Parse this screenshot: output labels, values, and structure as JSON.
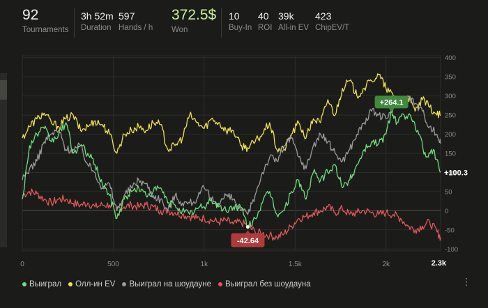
{
  "stats": {
    "tournaments": {
      "value": "92",
      "label": "Tournaments"
    },
    "duration": {
      "value": "3h 52m",
      "label": "Duration"
    },
    "hands": {
      "value": "597",
      "label": "Hands / h"
    },
    "won": {
      "value": "372.5$",
      "label": "Won"
    },
    "buyin": {
      "value": "10",
      "label": "Buy-In"
    },
    "roi": {
      "value": "40",
      "label": "ROI"
    },
    "allin_ev": {
      "value": "39k",
      "label": "All-in EV"
    },
    "chip_ev": {
      "value": "423",
      "label": "ChipEV/T"
    }
  },
  "colors": {
    "won": "#6fe07a",
    "allin_ev": "#f2e24c",
    "showdown": "#9b9b9b",
    "no_showdown": "#e35757",
    "tooltip_max": "#3f8a3c",
    "tooltip_min": "#b13b3b"
  },
  "legend": [
    {
      "key": "won",
      "label": "Выиграл"
    },
    {
      "key": "allin_ev",
      "label": "Олл-ин EV"
    },
    {
      "key": "showdown",
      "label": "Выиграл на шоудауне"
    },
    {
      "key": "no_showdown",
      "label": "Выиграл без шоудауна"
    }
  ],
  "chart_data": {
    "type": "line",
    "x_ticks": [
      0,
      500,
      1000,
      1500,
      2000
    ],
    "x_tick_labels": [
      "0",
      "500",
      "1k",
      "1.5k",
      "2k"
    ],
    "x_end_label": "2.3k",
    "xlim": [
      0,
      2300
    ],
    "y_ticks": [
      -100,
      -50,
      0,
      50,
      100,
      150,
      200,
      250,
      300,
      350,
      400
    ],
    "ylim": [
      -105,
      405
    ],
    "annotations": {
      "max": {
        "label": "+264.1",
        "x": 2030,
        "y": 264.1
      },
      "min": {
        "label": "-42.64",
        "x": 1240,
        "y": -42.64
      },
      "last": {
        "label": "+100.3",
        "x": 2300,
        "y": 100.3
      }
    },
    "series": [
      {
        "key": "won",
        "x": [
          0,
          40,
          80,
          120,
          160,
          200,
          240,
          280,
          320,
          360,
          400,
          440,
          480,
          520,
          560,
          600,
          640,
          680,
          720,
          760,
          800,
          840,
          880,
          920,
          960,
          1000,
          1040,
          1080,
          1120,
          1160,
          1200,
          1240,
          1280,
          1320,
          1360,
          1400,
          1440,
          1480,
          1520,
          1560,
          1600,
          1640,
          1680,
          1720,
          1760,
          1800,
          1840,
          1880,
          1920,
          1960,
          2000,
          2030,
          2060,
          2100,
          2140,
          2180,
          2220,
          2260,
          2300
        ],
        "y": [
          30,
          170,
          200,
          215,
          180,
          200,
          230,
          150,
          170,
          150,
          120,
          70,
          40,
          -20,
          30,
          50,
          60,
          40,
          50,
          60,
          20,
          15,
          0,
          -10,
          5,
          10,
          30,
          10,
          0,
          10,
          10,
          -42.64,
          -20,
          20,
          50,
          -10,
          0,
          50,
          80,
          30,
          100,
          80,
          100,
          120,
          60,
          80,
          120,
          160,
          180,
          175,
          200,
          264.1,
          230,
          250,
          240,
          200,
          140,
          160,
          100.3
        ]
      },
      {
        "key": "allin_ev",
        "x": [
          0,
          40,
          80,
          120,
          160,
          200,
          240,
          280,
          320,
          360,
          400,
          440,
          480,
          520,
          560,
          600,
          640,
          680,
          720,
          760,
          800,
          840,
          880,
          920,
          960,
          1000,
          1040,
          1080,
          1120,
          1160,
          1200,
          1240,
          1280,
          1320,
          1360,
          1400,
          1440,
          1480,
          1520,
          1560,
          1600,
          1640,
          1680,
          1720,
          1760,
          1800,
          1840,
          1880,
          1920,
          1960,
          2000,
          2040,
          2080,
          2120,
          2160,
          2200,
          2240,
          2280,
          2300
        ],
        "y": [
          190,
          220,
          240,
          255,
          230,
          220,
          240,
          250,
          210,
          220,
          235,
          225,
          200,
          150,
          200,
          210,
          220,
          210,
          230,
          225,
          160,
          170,
          190,
          250,
          230,
          215,
          240,
          230,
          210,
          210,
          170,
          165,
          180,
          200,
          230,
          160,
          160,
          200,
          230,
          190,
          240,
          230,
          290,
          250,
          320,
          340,
          300,
          320,
          340,
          355,
          320,
          300,
          290,
          300,
          260,
          290,
          270,
          250,
          250
        ]
      },
      {
        "key": "showdown",
        "x": [
          0,
          40,
          80,
          120,
          160,
          200,
          240,
          280,
          320,
          360,
          400,
          440,
          480,
          520,
          560,
          600,
          640,
          680,
          720,
          760,
          800,
          840,
          880,
          920,
          960,
          1000,
          1040,
          1080,
          1120,
          1160,
          1200,
          1240,
          1280,
          1320,
          1360,
          1400,
          1440,
          1480,
          1520,
          1560,
          1600,
          1640,
          1680,
          1720,
          1760,
          1800,
          1840,
          1880,
          1920,
          1960,
          2000,
          2040,
          2080,
          2120,
          2160,
          2200,
          2240,
          2280,
          2300
        ],
        "y": [
          80,
          110,
          130,
          180,
          200,
          210,
          160,
          160,
          170,
          120,
          100,
          60,
          70,
          0,
          40,
          60,
          80,
          70,
          40,
          30,
          0,
          40,
          20,
          20,
          30,
          60,
          30,
          20,
          40,
          30,
          0,
          -10,
          40,
          100,
          140,
          130,
          170,
          190,
          140,
          110,
          170,
          200,
          180,
          150,
          130,
          160,
          200,
          230,
          260,
          250,
          240,
          270,
          290,
          300,
          280,
          260,
          220,
          200,
          175
        ]
      },
      {
        "key": "no_showdown",
        "x": [
          0,
          40,
          80,
          120,
          160,
          200,
          240,
          280,
          320,
          360,
          400,
          440,
          480,
          520,
          560,
          600,
          640,
          680,
          720,
          760,
          800,
          840,
          880,
          920,
          960,
          1000,
          1040,
          1080,
          1120,
          1160,
          1200,
          1240,
          1280,
          1320,
          1360,
          1400,
          1440,
          1480,
          1520,
          1560,
          1600,
          1640,
          1680,
          1720,
          1760,
          1800,
          1840,
          1880,
          1920,
          1960,
          2000,
          2040,
          2080,
          2120,
          2160,
          2200,
          2240,
          2280,
          2300
        ],
        "y": [
          40,
          50,
          45,
          30,
          20,
          30,
          30,
          20,
          15,
          20,
          10,
          15,
          15,
          5,
          10,
          15,
          10,
          15,
          10,
          0,
          0,
          -5,
          -10,
          -15,
          -20,
          -20,
          -25,
          -30,
          -25,
          -35,
          -30,
          -40,
          -55,
          -60,
          -65,
          -70,
          -60,
          -40,
          -20,
          -15,
          -5,
          0,
          10,
          -5,
          5,
          -10,
          -5,
          0,
          -5,
          -10,
          -5,
          -10,
          -20,
          -40,
          -50,
          -40,
          -30,
          -55,
          -70
        ]
      }
    ]
  }
}
